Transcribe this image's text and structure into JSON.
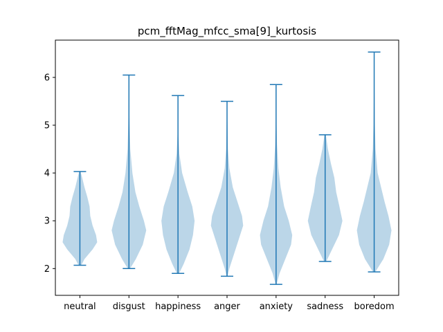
{
  "chart_data": {
    "type": "violin",
    "title": "pcm_fftMag_mfcc_sma[9]_kurtosis",
    "xlabel": "",
    "ylabel": "",
    "ylim": [
      1.44,
      6.78
    ],
    "yticks": [
      2,
      3,
      4,
      5,
      6
    ],
    "categories": [
      "neutral",
      "disgust",
      "happiness",
      "anger",
      "anxiety",
      "sadness",
      "boredom"
    ],
    "colors": {
      "fill": "#1f77b4",
      "fill_opacity": 0.3,
      "line": "#1f77b4"
    },
    "series": [
      {
        "name": "neutral",
        "min": 2.07,
        "max": 4.03,
        "profile": [
          [
            2.07,
            0.06
          ],
          [
            2.2,
            0.2
          ],
          [
            2.4,
            0.55
          ],
          [
            2.55,
            0.75
          ],
          [
            2.7,
            0.7
          ],
          [
            2.9,
            0.55
          ],
          [
            3.1,
            0.45
          ],
          [
            3.3,
            0.42
          ],
          [
            3.5,
            0.32
          ],
          [
            3.7,
            0.2
          ],
          [
            3.9,
            0.1
          ],
          [
            4.03,
            0.03
          ]
        ]
      },
      {
        "name": "disgust",
        "min": 2.0,
        "max": 6.05,
        "profile": [
          [
            2.0,
            0.05
          ],
          [
            2.2,
            0.3
          ],
          [
            2.5,
            0.6
          ],
          [
            2.8,
            0.75
          ],
          [
            3.0,
            0.65
          ],
          [
            3.3,
            0.45
          ],
          [
            3.6,
            0.28
          ],
          [
            4.0,
            0.15
          ],
          [
            4.5,
            0.06
          ],
          [
            5.0,
            0.03
          ],
          [
            5.5,
            0.01
          ],
          [
            6.05,
            0.0
          ]
        ]
      },
      {
        "name": "happiness",
        "min": 1.9,
        "max": 5.62,
        "profile": [
          [
            1.9,
            0.05
          ],
          [
            2.1,
            0.25
          ],
          [
            2.4,
            0.5
          ],
          [
            2.7,
            0.65
          ],
          [
            3.0,
            0.72
          ],
          [
            3.3,
            0.62
          ],
          [
            3.6,
            0.42
          ],
          [
            4.0,
            0.18
          ],
          [
            4.4,
            0.06
          ],
          [
            4.8,
            0.02
          ],
          [
            5.2,
            0.01
          ],
          [
            5.62,
            0.0
          ]
        ]
      },
      {
        "name": "anger",
        "min": 1.84,
        "max": 5.5,
        "profile": [
          [
            1.84,
            0.02
          ],
          [
            2.0,
            0.1
          ],
          [
            2.3,
            0.3
          ],
          [
            2.6,
            0.5
          ],
          [
            2.9,
            0.7
          ],
          [
            3.1,
            0.65
          ],
          [
            3.4,
            0.45
          ],
          [
            3.7,
            0.25
          ],
          [
            4.1,
            0.1
          ],
          [
            4.5,
            0.04
          ],
          [
            5.0,
            0.02
          ],
          [
            5.5,
            0.0
          ]
        ]
      },
      {
        "name": "anxiety",
        "min": 1.67,
        "max": 5.85,
        "profile": [
          [
            1.67,
            0.02
          ],
          [
            1.9,
            0.15
          ],
          [
            2.2,
            0.4
          ],
          [
            2.5,
            0.65
          ],
          [
            2.7,
            0.7
          ],
          [
            3.0,
            0.55
          ],
          [
            3.3,
            0.35
          ],
          [
            3.7,
            0.2
          ],
          [
            4.1,
            0.1
          ],
          [
            4.6,
            0.04
          ],
          [
            5.2,
            0.01
          ],
          [
            5.85,
            0.0
          ]
        ]
      },
      {
        "name": "sadness",
        "min": 2.15,
        "max": 4.8,
        "profile": [
          [
            2.15,
            0.05
          ],
          [
            2.4,
            0.3
          ],
          [
            2.7,
            0.6
          ],
          [
            3.0,
            0.75
          ],
          [
            3.3,
            0.62
          ],
          [
            3.6,
            0.48
          ],
          [
            3.9,
            0.4
          ],
          [
            4.2,
            0.25
          ],
          [
            4.5,
            0.12
          ],
          [
            4.8,
            0.03
          ]
        ]
      },
      {
        "name": "boredom",
        "min": 1.93,
        "max": 6.53,
        "profile": [
          [
            1.93,
            0.05
          ],
          [
            2.2,
            0.4
          ],
          [
            2.5,
            0.65
          ],
          [
            2.8,
            0.75
          ],
          [
            3.1,
            0.62
          ],
          [
            3.4,
            0.45
          ],
          [
            3.7,
            0.3
          ],
          [
            4.0,
            0.15
          ],
          [
            4.5,
            0.06
          ],
          [
            5.0,
            0.03
          ],
          [
            5.8,
            0.01
          ],
          [
            6.53,
            0.0
          ]
        ]
      }
    ]
  }
}
